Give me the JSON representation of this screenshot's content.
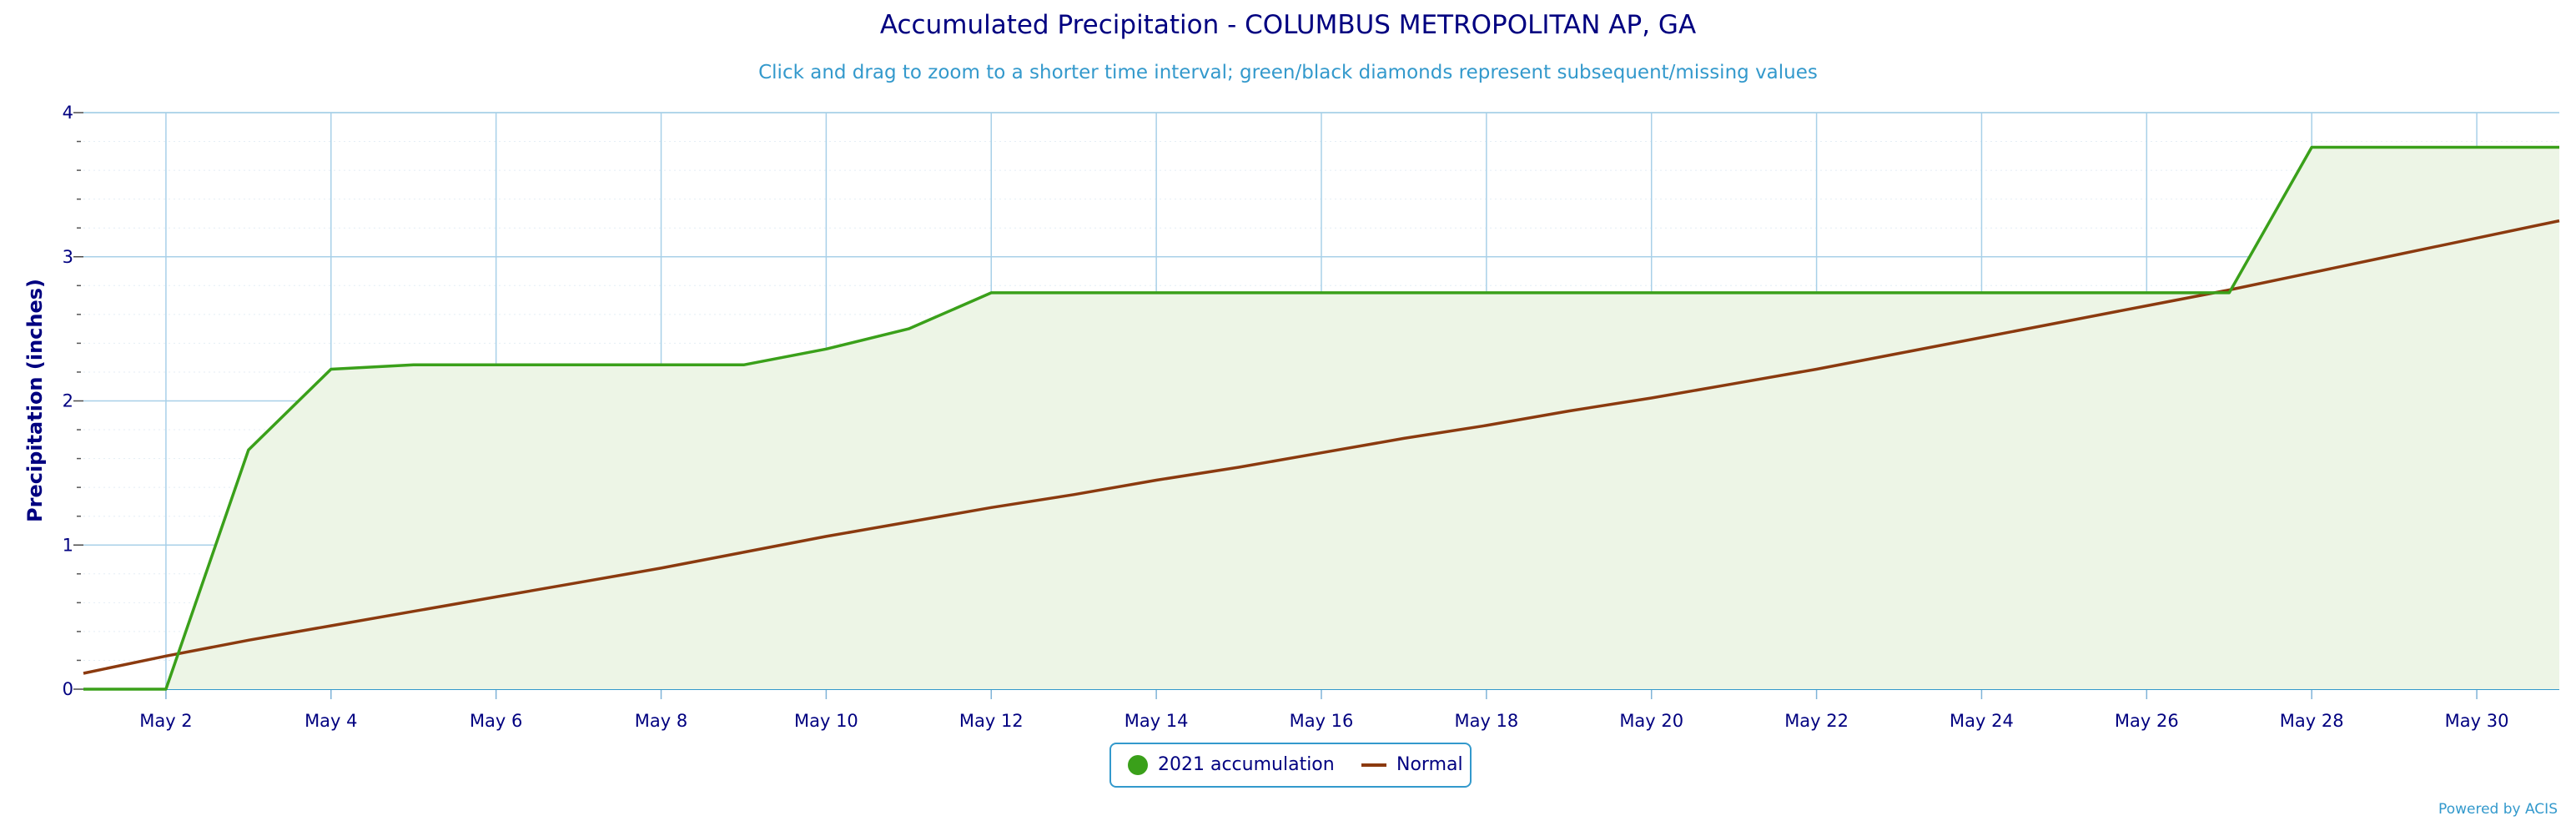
{
  "chart_data": {
    "type": "area",
    "title": "Accumulated Precipitation - COLUMBUS METROPOLITAN AP, GA",
    "subtitle": "Click and drag to zoom to a shorter time interval; green/black diamonds represent subsequent/missing values",
    "xlabel": "",
    "ylabel": "Precipitation (inches)",
    "x_ticks": [
      "May 2",
      "May 4",
      "May 6",
      "May 8",
      "May 10",
      "May 12",
      "May 14",
      "May 16",
      "May 18",
      "May 20",
      "May 22",
      "May 24",
      "May 26",
      "May 28",
      "May 30"
    ],
    "y_ticks": [
      "0",
      "1",
      "2",
      "3",
      "4"
    ],
    "ylim": [
      0,
      4
    ],
    "xlim": [
      "May 1",
      "May 31"
    ],
    "grid": true,
    "legend_position": "bottom-center",
    "colors": {
      "accumulation": "#3aa01a",
      "normal": "#8b3a0f",
      "fill": "#edf5e6",
      "grid": "#a8d0e8",
      "text": "#000080",
      "subtitle": "#3399cc"
    },
    "series": [
      {
        "name": "2021 accumulation",
        "type": "area",
        "x": [
          "May 1",
          "May 2",
          "May 3",
          "May 4",
          "May 5",
          "May 6",
          "May 7",
          "May 8",
          "May 9",
          "May 10",
          "May 11",
          "May 12",
          "May 13",
          "May 14",
          "May 15",
          "May 16",
          "May 17",
          "May 18",
          "May 19",
          "May 20",
          "May 21",
          "May 22",
          "May 23",
          "May 24",
          "May 25",
          "May 26",
          "May 27",
          "May 28",
          "May 29",
          "May 30",
          "May 31"
        ],
        "values": [
          0,
          0,
          1.66,
          2.22,
          2.25,
          2.25,
          2.25,
          2.25,
          2.25,
          2.36,
          2.5,
          2.75,
          2.75,
          2.75,
          2.75,
          2.75,
          2.75,
          2.75,
          2.75,
          2.75,
          2.75,
          2.75,
          2.75,
          2.75,
          2.75,
          2.75,
          2.75,
          3.76,
          3.76,
          3.76,
          3.76
        ]
      },
      {
        "name": "Normal",
        "type": "line",
        "x": [
          "May 1",
          "May 2",
          "May 3",
          "May 4",
          "May 5",
          "May 6",
          "May 7",
          "May 8",
          "May 9",
          "May 10",
          "May 11",
          "May 12",
          "May 13",
          "May 14",
          "May 15",
          "May 16",
          "May 17",
          "May 18",
          "May 19",
          "May 20",
          "May 21",
          "May 22",
          "May 23",
          "May 24",
          "May 25",
          "May 26",
          "May 27",
          "May 28",
          "May 29",
          "May 30",
          "May 31"
        ],
        "values": [
          0.11,
          0.23,
          0.34,
          0.44,
          0.54,
          0.64,
          0.74,
          0.84,
          0.95,
          1.06,
          1.16,
          1.26,
          1.35,
          1.45,
          1.54,
          1.64,
          1.74,
          1.83,
          1.93,
          2.02,
          2.12,
          2.22,
          2.33,
          2.44,
          2.55,
          2.66,
          2.77,
          2.89,
          3.01,
          3.13,
          3.25
        ]
      }
    ]
  },
  "legend": {
    "item1": "2021 accumulation",
    "item2": "Normal"
  },
  "credit": "Powered by ACIS"
}
